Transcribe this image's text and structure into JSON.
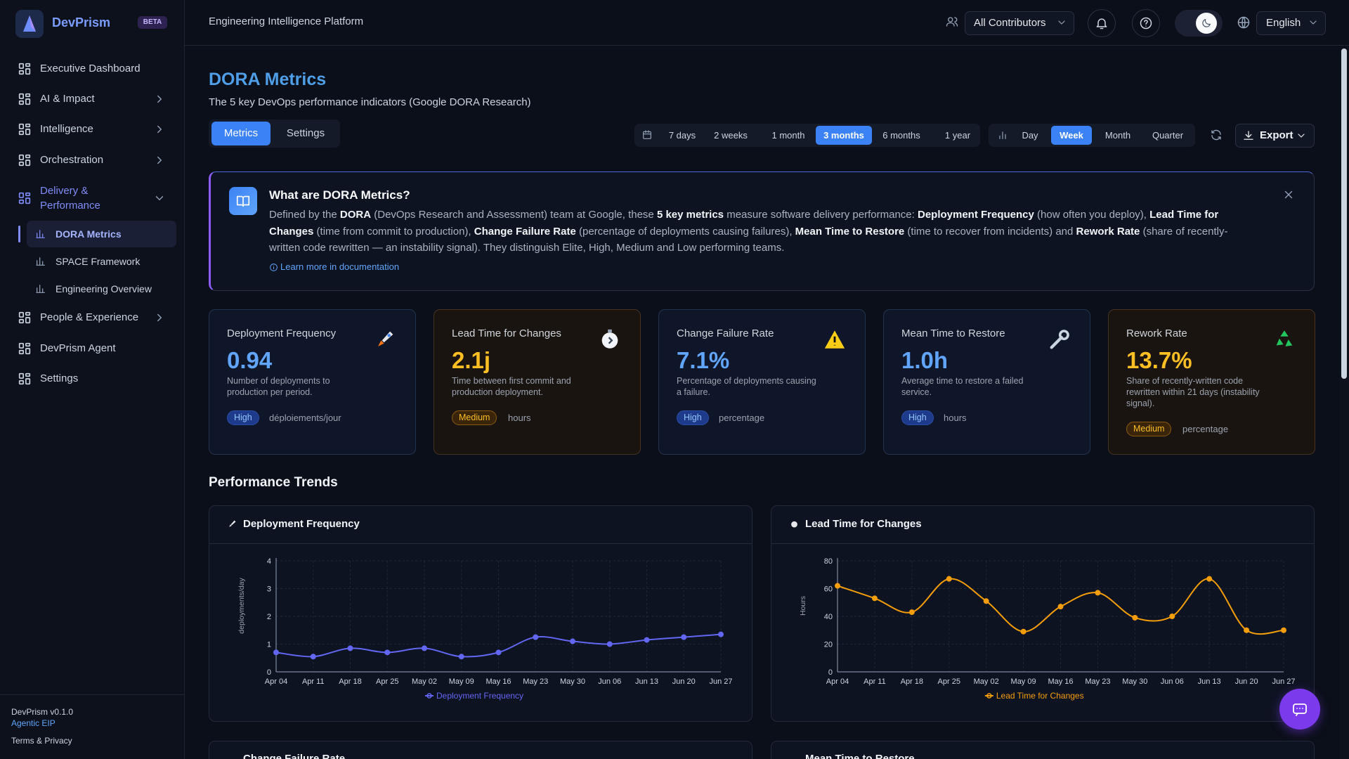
{
  "sidebar": {
    "brand": "DevPrism",
    "badge": "BETA",
    "nav": [
      {
        "label": "Executive Dashboard"
      },
      {
        "label": "AI & Impact",
        "expandable": true
      },
      {
        "label": "Intelligence",
        "expandable": true
      },
      {
        "label": "Orchestration",
        "expandable": true
      },
      {
        "label": "Delivery & Performance",
        "expandable": true,
        "active": true,
        "children": [
          {
            "label": "DORA Metrics",
            "active": true
          },
          {
            "label": "SPACE Framework"
          },
          {
            "label": "Engineering Overview"
          }
        ]
      },
      {
        "label": "People & Experience",
        "expandable": true
      },
      {
        "label": "DevPrism Agent"
      },
      {
        "label": "Settings"
      }
    ],
    "version": "DevPrism v0.1.0",
    "product": "Agentic EIP",
    "legal": "Terms & Privacy"
  },
  "header": {
    "title": "Engineering Intelligence Platform",
    "contributors": "All Contributors",
    "language": "English"
  },
  "page": {
    "title": "DORA Metrics",
    "subtitle": "The 5 key DevOps performance indicators (Google DORA Research)",
    "tabs": [
      "Metrics",
      "Settings"
    ],
    "active_tab": 0,
    "ranges": [
      "7 days",
      "2 weeks",
      "1 month",
      "3 months",
      "6 months",
      "1 year"
    ],
    "active_range": 3,
    "granularity": [
      "Day",
      "Week",
      "Month",
      "Quarter"
    ],
    "active_granularity": 1,
    "export": "Export"
  },
  "info": {
    "title": "What are DORA Metrics?",
    "segments": [
      {
        "text": "Defined by the "
      },
      {
        "text": "DORA",
        "bold": true
      },
      {
        "text": " (DevOps Research and Assessment) team at Google, these "
      },
      {
        "text": "5 key metrics",
        "bold": true
      },
      {
        "text": " measure software delivery performance: "
      },
      {
        "text": "Deployment Frequency",
        "bold": true
      },
      {
        "text": " (how often you deploy), "
      },
      {
        "text": "Lead Time for Changes",
        "bold": true
      },
      {
        "text": " (time from commit to production), "
      },
      {
        "text": "Change Failure Rate",
        "bold": true
      },
      {
        "text": " (percentage of deployments causing failures), "
      },
      {
        "text": "Mean Time to Restore",
        "bold": true
      },
      {
        "text": " (time to recover from incidents) and "
      },
      {
        "text": "Rework Rate",
        "bold": true
      },
      {
        "text": " (share of recently-written code rewritten — an instability signal). They distinguish Elite, High, Medium and Low performing teams."
      }
    ],
    "link": "Learn more in documentation"
  },
  "cards": [
    {
      "title": "Deployment Frequency",
      "value": "0.94",
      "desc": "Number of deployments to production per period.",
      "level": "High",
      "unit": "déploiements/jour",
      "tone": "blue"
    },
    {
      "title": "Lead Time for Changes",
      "value": "2.1j",
      "desc": "Time between first commit and production deployment.",
      "level": "Medium",
      "unit": "hours",
      "tone": "amber"
    },
    {
      "title": "Change Failure Rate",
      "value": "7.1%",
      "desc": "Percentage of deployments causing a failure.",
      "level": "High",
      "unit": "percentage",
      "tone": "blue"
    },
    {
      "title": "Mean Time to Restore",
      "value": "1.0h",
      "desc": "Average time to restore a failed service.",
      "level": "High",
      "unit": "hours",
      "tone": "blue"
    },
    {
      "title": "Rework Rate",
      "value": "13.7%",
      "desc": "Share of recently-written code rewritten within 21 days (instability signal).",
      "level": "Medium",
      "unit": "percentage",
      "tone": "amber"
    }
  ],
  "trends_title": "Performance Trends",
  "chart_data": [
    {
      "type": "line",
      "title": "Deployment Frequency",
      "ylabel": "deployments/day",
      "categories": [
        "Apr 04",
        "Apr 11",
        "Apr 18",
        "Apr 25",
        "May 02",
        "May 09",
        "May 16",
        "May 23",
        "May 30",
        "Jun 06",
        "Jun 13",
        "Jun 20",
        "Jun 27"
      ],
      "series": [
        {
          "name": "Deployment Frequency",
          "color": "#6366f1",
          "values": [
            0.7,
            0.55,
            0.85,
            0.7,
            0.85,
            0.55,
            0.7,
            1.25,
            1.1,
            1.0,
            1.15,
            1.25,
            1.35
          ]
        }
      ],
      "ylim": [
        0,
        4
      ],
      "yticks": [
        0,
        1,
        2,
        3,
        4
      ],
      "grid": true
    },
    {
      "type": "line",
      "title": "Lead Time for Changes",
      "ylabel": "Hours",
      "categories": [
        "Apr 04",
        "Apr 11",
        "Apr 18",
        "Apr 25",
        "May 02",
        "May 09",
        "May 16",
        "May 23",
        "May 30",
        "Jun 06",
        "Jun 13",
        "Jun 20",
        "Jun 27"
      ],
      "series": [
        {
          "name": "Lead Time for Changes",
          "color": "#f59e0b",
          "values": [
            62,
            53,
            43,
            67,
            51,
            29,
            47,
            57,
            39,
            40,
            67,
            30,
            30
          ]
        }
      ],
      "ylim": [
        0,
        80
      ],
      "yticks": [
        0,
        20,
        40,
        60,
        80
      ],
      "grid": true
    }
  ],
  "more_charts": [
    "Change Failure Rate",
    "Mean Time to Restore"
  ]
}
